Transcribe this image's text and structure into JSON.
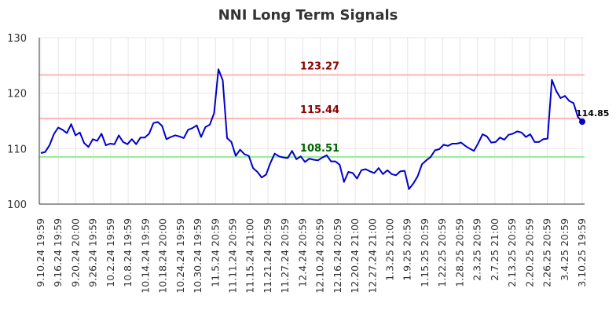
{
  "chart_data": {
    "type": "line",
    "title": "NNI Long Term Signals",
    "ylim": [
      100,
      130
    ],
    "yticks": [
      "100",
      "110",
      "120",
      "130"
    ],
    "grid": true,
    "xtick_labels": [
      "9.10.24 19:59",
      "9.16.24 19:59",
      "9.20.24 20:00",
      "9.26.24 19:59",
      "10.2.24 19:59",
      "10.8.24 19:59",
      "10.14.24 19:59",
      "10.18.24 20:00",
      "10.24.24 19:59",
      "10.30.24 19:59",
      "11.5.24 20:59",
      "11.11.24 20:59",
      "11.15.24 21:00",
      "11.21.24 20:59",
      "11.27.24 20:59",
      "12.4.24 20:59",
      "12.10.24 20:59",
      "12.16.24 20:59",
      "12.20.24 21:00",
      "12.27.24 21:00",
      "1.3.25 21:00",
      "1.9.25 20:59",
      "1.15.25 20:59",
      "1.22.25 20:59",
      "1.28.25 20:59",
      "2.3.25 20:59",
      "2.7.25 21:00",
      "2.13.25 20:59",
      "2.20.25 20:59",
      "2.26.25 20:59",
      "3.4.25 20:59",
      "3.10.25 19:59"
    ],
    "series": [
      {
        "color": "#0000cc",
        "values": [
          109.2,
          109.4,
          110.6,
          112.6,
          113.8,
          113.4,
          112.8,
          114.4,
          112.4,
          112.9,
          111.0,
          110.3,
          111.7,
          111.4,
          112.7,
          110.6,
          110.9,
          110.8,
          112.4,
          111.2,
          110.8,
          111.7,
          110.8,
          112.0,
          112.0,
          112.7,
          114.6,
          114.8,
          114.1,
          111.7,
          112.1,
          112.4,
          112.2,
          111.9,
          113.4,
          113.7,
          114.2,
          112.1,
          113.9,
          114.3,
          116.4,
          124.3,
          122.3,
          111.9,
          111.2,
          108.7,
          109.8,
          109.0,
          108.7,
          106.5,
          105.8,
          104.8,
          105.3,
          107.4,
          109.1,
          108.6,
          108.4,
          108.3,
          109.6,
          108.1,
          108.6,
          107.6,
          108.2,
          108.0,
          107.9,
          108.4,
          108.8,
          107.7,
          107.7,
          107.1,
          104.0,
          105.8,
          105.6,
          104.6,
          106.1,
          106.3,
          105.9,
          105.6,
          106.5,
          105.4,
          106.1,
          105.4,
          105.2,
          105.9,
          106.0,
          102.7,
          103.7,
          105.0,
          107.2,
          107.9,
          108.5,
          109.7,
          109.9,
          110.7,
          110.5,
          110.9,
          110.9,
          111.1,
          110.5,
          110.0,
          109.6,
          111.0,
          112.6,
          112.2,
          111.1,
          111.2,
          112.0,
          111.6,
          112.5,
          112.7,
          113.1,
          112.9,
          112.1,
          112.6,
          111.2,
          111.2,
          111.7,
          111.8,
          122.4,
          120.4,
          119.1,
          119.5,
          118.6,
          118.2,
          115.7,
          114.85
        ]
      }
    ],
    "reference_lines": [
      {
        "value": 123.27,
        "label": "123.27",
        "line_color": "#ffb3b3",
        "text_color": "#8b0000"
      },
      {
        "value": 115.44,
        "label": "115.44",
        "line_color": "#ffb3b3",
        "text_color": "#8b0000"
      },
      {
        "value": 108.51,
        "label": "108.51",
        "line_color": "#90ee90",
        "text_color": "#006400"
      }
    ],
    "last_point_label": "114.85"
  }
}
